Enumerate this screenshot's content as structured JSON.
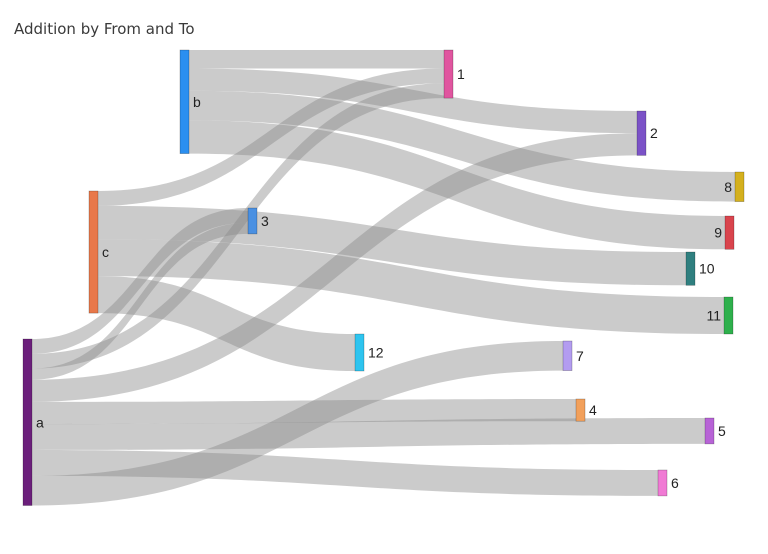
{
  "title": "Addition by From and To",
  "chart_data": {
    "type": "sankey",
    "title": "Addition by From and To",
    "nodes": [
      {
        "id": "a",
        "label": "a",
        "color": "#6b1f7b"
      },
      {
        "id": "b",
        "label": "b",
        "color": "#2b8ff0"
      },
      {
        "id": "c",
        "label": "c",
        "color": "#e8784a"
      },
      {
        "id": "1",
        "label": "1",
        "color": "#e0559f"
      },
      {
        "id": "2",
        "label": "2",
        "color": "#7b52c7"
      },
      {
        "id": "3",
        "label": "3",
        "color": "#4a90e2"
      },
      {
        "id": "4",
        "label": "4",
        "color": "#f2a05b"
      },
      {
        "id": "5",
        "label": "5",
        "color": "#b763d6"
      },
      {
        "id": "6",
        "label": "6",
        "color": "#f07ad4"
      },
      {
        "id": "7",
        "label": "7",
        "color": "#b39cf0"
      },
      {
        "id": "8",
        "label": "8",
        "color": "#d4b01e"
      },
      {
        "id": "9",
        "label": "9",
        "color": "#d9444d"
      },
      {
        "id": "10",
        "label": "10",
        "color": "#2f7f7f"
      },
      {
        "id": "11",
        "label": "11",
        "color": "#2eb04c"
      },
      {
        "id": "12",
        "label": "12",
        "color": "#2ec4ef"
      }
    ],
    "links": [
      {
        "source": "b",
        "target": "1",
        "value": 5
      },
      {
        "source": "b",
        "target": "2",
        "value": 6
      },
      {
        "source": "b",
        "target": "8",
        "value": 8
      },
      {
        "source": "b",
        "target": "9",
        "value": 9
      },
      {
        "source": "c",
        "target": "1",
        "value": 4
      },
      {
        "source": "c",
        "target": "10",
        "value": 9
      },
      {
        "source": "c",
        "target": "11",
        "value": 10
      },
      {
        "source": "c",
        "target": "12",
        "value": 10
      },
      {
        "source": "a",
        "target": "3",
        "value": 4
      },
      {
        "source": "a",
        "target": "1",
        "value": 4
      },
      {
        "source": "a",
        "target": "3",
        "value": 3
      },
      {
        "source": "a",
        "target": "2",
        "value": 6
      },
      {
        "source": "a",
        "target": "4",
        "value": 6
      },
      {
        "source": "a",
        "target": "5",
        "value": 7
      },
      {
        "source": "a",
        "target": "6",
        "value": 7
      },
      {
        "source": "a",
        "target": "7",
        "value": 8
      }
    ]
  }
}
